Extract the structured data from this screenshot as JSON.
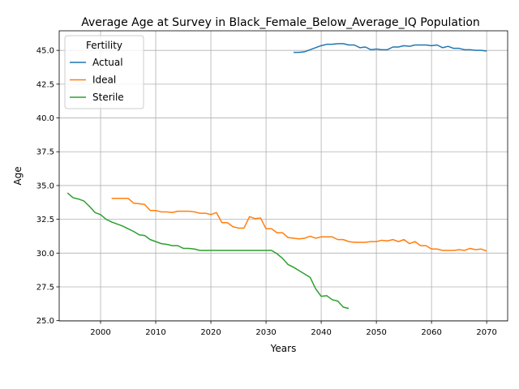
{
  "chart_data": {
    "type": "line",
    "title": "Average Age at Survey in Black_Female_Below_Average_IQ Population",
    "xlabel": "Years",
    "ylabel": "Age",
    "xlim": [
      1992.5,
      2073.8
    ],
    "ylim": [
      24.98,
      46.45
    ],
    "xticks": [
      2000,
      2010,
      2020,
      2030,
      2040,
      2050,
      2060,
      2070
    ],
    "yticks": [
      25.0,
      27.5,
      30.0,
      32.5,
      35.0,
      37.5,
      40.0,
      42.5,
      45.0
    ],
    "xtick_labels": [
      "2000",
      "2010",
      "2020",
      "2030",
      "2040",
      "2050",
      "2060",
      "2070"
    ],
    "ytick_labels": [
      "25.0",
      "27.5",
      "30.0",
      "32.5",
      "35.0",
      "37.5",
      "40.0",
      "42.5",
      "45.0"
    ],
    "grid": true,
    "legend": {
      "title": "Fertility",
      "position": "upper-left"
    },
    "series": [
      {
        "name": "Actual",
        "color": "#1f77b4",
        "x": [
          2035,
          2036,
          2037,
          2038,
          2039,
          2040,
          2041,
          2042,
          2043,
          2044,
          2045,
          2046,
          2047,
          2048,
          2049,
          2050,
          2051,
          2052,
          2053,
          2054,
          2055,
          2056,
          2057,
          2058,
          2059,
          2060,
          2061,
          2062,
          2063,
          2064,
          2065,
          2066,
          2067,
          2068,
          2069,
          2070
        ],
        "y": [
          44.85,
          44.85,
          44.9,
          45.05,
          45.2,
          45.35,
          45.45,
          45.45,
          45.5,
          45.5,
          45.4,
          45.4,
          45.2,
          45.25,
          45.05,
          45.1,
          45.05,
          45.05,
          45.25,
          45.25,
          45.35,
          45.3,
          45.4,
          45.4,
          45.4,
          45.35,
          45.4,
          45.2,
          45.3,
          45.15,
          45.15,
          45.05,
          45.05,
          45.0,
          45.0,
          44.95
        ]
      },
      {
        "name": "Ideal",
        "color": "#ff7f0e",
        "x": [
          2002,
          2003,
          2004,
          2005,
          2006,
          2007,
          2008,
          2009,
          2010,
          2011,
          2012,
          2013,
          2014,
          2015,
          2016,
          2017,
          2018,
          2019,
          2020,
          2021,
          2022,
          2023,
          2024,
          2025,
          2026,
          2027,
          2028,
          2029,
          2030,
          2031,
          2032,
          2033,
          2034,
          2035,
          2036,
          2037,
          2038,
          2039,
          2040,
          2041,
          2042,
          2043,
          2044,
          2045,
          2046,
          2047,
          2048,
          2049,
          2050,
          2051,
          2052,
          2053,
          2054,
          2055,
          2056,
          2057,
          2058,
          2059,
          2060,
          2061,
          2062,
          2063,
          2064,
          2065,
          2066,
          2067,
          2068,
          2069,
          2070
        ],
        "y": [
          34.05,
          34.05,
          34.05,
          34.05,
          33.7,
          33.65,
          33.6,
          33.15,
          33.15,
          33.05,
          33.05,
          33.0,
          33.1,
          33.1,
          33.1,
          33.05,
          32.95,
          32.95,
          32.85,
          33.0,
          32.25,
          32.25,
          31.95,
          31.85,
          31.85,
          32.7,
          32.55,
          32.6,
          31.8,
          31.8,
          31.5,
          31.5,
          31.15,
          31.1,
          31.05,
          31.1,
          31.25,
          31.1,
          31.2,
          31.2,
          31.2,
          31.0,
          31.0,
          30.85,
          30.8,
          30.8,
          30.8,
          30.85,
          30.85,
          30.95,
          30.9,
          31.0,
          30.85,
          31.0,
          30.7,
          30.85,
          30.55,
          30.55,
          30.3,
          30.3,
          30.2,
          30.2,
          30.2,
          30.25,
          30.2,
          30.35,
          30.25,
          30.3,
          30.15
        ]
      },
      {
        "name": "Sterile",
        "color": "#2ca02c",
        "x": [
          1994,
          1995,
          1996,
          1997,
          1998,
          1999,
          2000,
          2001,
          2002,
          2003,
          2004,
          2005,
          2006,
          2007,
          2008,
          2009,
          2010,
          2011,
          2012,
          2013,
          2014,
          2015,
          2016,
          2017,
          2018,
          2019,
          2020,
          2021,
          2022,
          2023,
          2024,
          2025,
          2026,
          2027,
          2028,
          2029,
          2030,
          2031,
          2032,
          2033,
          2034,
          2035,
          2036,
          2037,
          2038,
          2039,
          2040,
          2041,
          2042,
          2043,
          2044,
          2045
        ],
        "y": [
          34.45,
          34.1,
          34.0,
          33.85,
          33.45,
          33.0,
          32.85,
          32.5,
          32.3,
          32.15,
          32.0,
          31.8,
          31.6,
          31.35,
          31.3,
          31.0,
          30.85,
          30.7,
          30.65,
          30.55,
          30.55,
          30.35,
          30.35,
          30.3,
          30.2,
          30.2,
          30.2,
          30.2,
          30.2,
          30.2,
          30.2,
          30.2,
          30.2,
          30.2,
          30.2,
          30.2,
          30.2,
          30.2,
          29.95,
          29.6,
          29.15,
          28.95,
          28.7,
          28.45,
          28.2,
          27.35,
          26.8,
          26.85,
          26.55,
          26.45,
          26.0,
          25.9
        ]
      }
    ]
  }
}
